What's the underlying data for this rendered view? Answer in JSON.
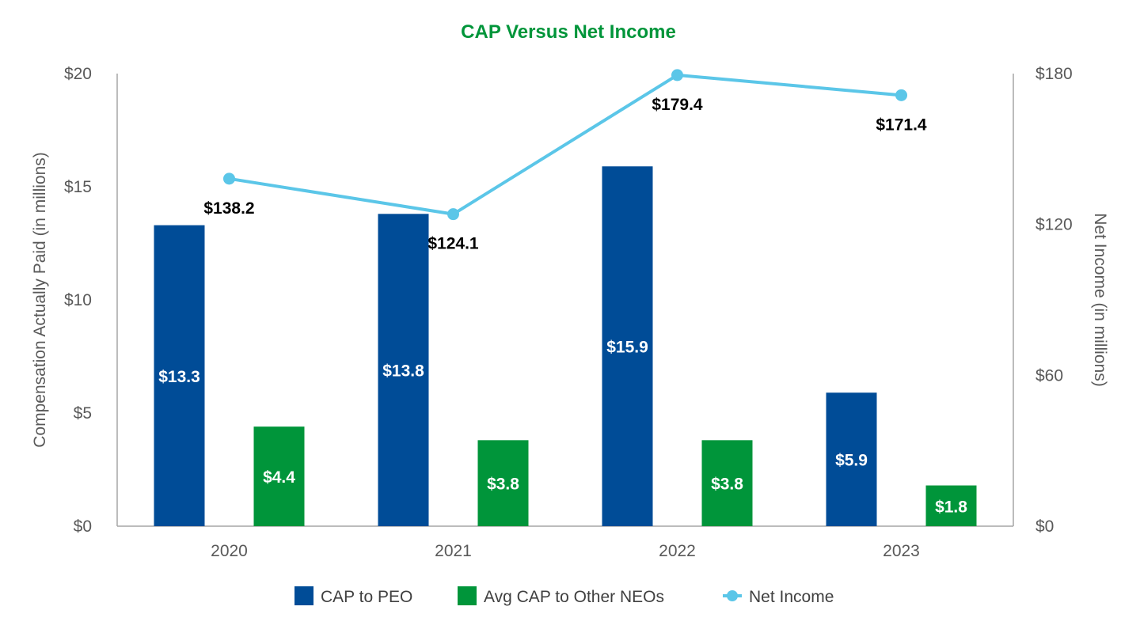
{
  "chart_data": {
    "type": "bar",
    "title": "CAP Versus Net Income",
    "categories": [
      "2020",
      "2021",
      "2022",
      "2023"
    ],
    "ylabel": "Compensation Actually Paid (in millions)",
    "y2label": "Net Income (in millions)",
    "ylim": [
      0,
      20
    ],
    "y2lim": [
      0,
      180
    ],
    "yticks": [
      "$0",
      "$5",
      "$10",
      "$15",
      "$20"
    ],
    "y2ticks": [
      "$0",
      "$60",
      "$120",
      "$180"
    ],
    "series": [
      {
        "name": "CAP to PEO",
        "kind": "bar",
        "axis": "left",
        "color": "#004C97",
        "values": [
          13.3,
          13.8,
          15.9,
          5.9
        ],
        "labels": [
          "$13.3",
          "$13.8",
          "$15.9",
          "$5.9"
        ]
      },
      {
        "name": "Avg CAP to Other NEOs",
        "kind": "bar",
        "axis": "left",
        "color": "#00953A",
        "values": [
          4.4,
          3.8,
          3.8,
          1.8
        ],
        "labels": [
          "$4.4",
          "$3.8",
          "$3.8",
          "$1.8"
        ]
      },
      {
        "name": "Net Income",
        "kind": "line",
        "axis": "right",
        "color": "#5BC6E8",
        "values": [
          138.2,
          124.1,
          179.4,
          171.4
        ],
        "labels": [
          "$138.2",
          "$124.1",
          "$179.4",
          "$171.4"
        ]
      }
    ],
    "legend": "bottom",
    "title_color": "#00953A",
    "axis_color": "#A6A6A6",
    "text_color": "#595959"
  }
}
